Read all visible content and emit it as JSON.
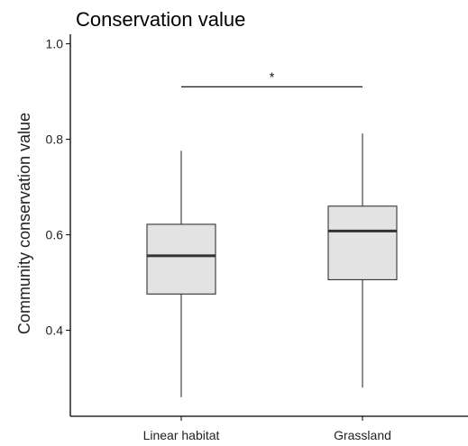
{
  "chart_data": {
    "type": "boxplot",
    "title": "Conservation value",
    "xlabel": "",
    "ylabel": "Community conservation value",
    "ylim": [
      0.22,
      1.02
    ],
    "yticks": [
      0.4,
      0.6,
      0.8,
      1.0
    ],
    "ytick_labels": [
      "0.4",
      "0.6",
      "0.8",
      "1.0"
    ],
    "grid": false,
    "categories": [
      "Linear habitat",
      "Grassland"
    ],
    "boxes": [
      {
        "category": "Linear habitat",
        "whisker_low": 0.26,
        "q1": 0.476,
        "median": 0.556,
        "q3": 0.622,
        "whisker_high": 0.776
      },
      {
        "category": "Grassland",
        "whisker_low": 0.28,
        "q1": 0.506,
        "median": 0.608,
        "q3": 0.66,
        "whisker_high": 0.812
      }
    ],
    "significance": {
      "label": "*",
      "y": 0.91,
      "between": [
        "Linear habitat",
        "Grassland"
      ]
    },
    "colors": {
      "box_fill": "#e3e3e3",
      "stroke": "#333333"
    }
  }
}
